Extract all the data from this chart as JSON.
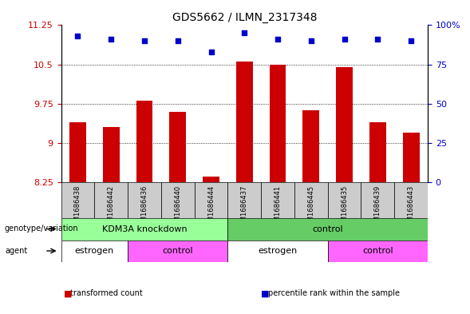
{
  "title": "GDS5662 / ILMN_2317348",
  "samples": [
    "GSM1686438",
    "GSM1686442",
    "GSM1686436",
    "GSM1686440",
    "GSM1686444",
    "GSM1686437",
    "GSM1686441",
    "GSM1686445",
    "GSM1686435",
    "GSM1686439",
    "GSM1686443"
  ],
  "bar_values": [
    9.4,
    9.3,
    9.8,
    9.6,
    8.35,
    10.55,
    10.5,
    9.62,
    10.45,
    9.4,
    9.2
  ],
  "dot_values": [
    93,
    91,
    90,
    90,
    83,
    95,
    91,
    90,
    91,
    91,
    90
  ],
  "ylim_left": [
    8.25,
    11.25
  ],
  "ylim_right": [
    0,
    100
  ],
  "yticks_left": [
    8.25,
    9.0,
    9.75,
    10.5,
    11.25
  ],
  "yticks_right": [
    0,
    25,
    50,
    75,
    100
  ],
  "ytick_labels_left": [
    "8.25",
    "9",
    "9.75",
    "10.5",
    "11.25"
  ],
  "ytick_labels_right": [
    "0",
    "25",
    "50",
    "75",
    "100%"
  ],
  "grid_lines": [
    9.0,
    9.75,
    10.5
  ],
  "bar_color": "#cc0000",
  "dot_color": "#0000cc",
  "bar_width": 0.5,
  "genotype_groups": [
    {
      "label": "KDM3A knockdown",
      "start": 0,
      "end": 5,
      "color": "#99ff99"
    },
    {
      "label": "control",
      "start": 5,
      "end": 11,
      "color": "#66cc66"
    }
  ],
  "agent_groups": [
    {
      "label": "estrogen",
      "start": 0,
      "end": 2,
      "color": "#ffffff"
    },
    {
      "label": "control",
      "start": 2,
      "end": 5,
      "color": "#ff66ff"
    },
    {
      "label": "estrogen",
      "start": 5,
      "end": 8,
      "color": "#ffffff"
    },
    {
      "label": "control",
      "start": 8,
      "end": 11,
      "color": "#ff66ff"
    }
  ],
  "legend_items": [
    {
      "label": "transformed count",
      "color": "#cc0000",
      "marker": "s"
    },
    {
      "label": "percentile rank within the sample",
      "color": "#0000cc",
      "marker": "s"
    }
  ],
  "genotype_label": "genotype/variation",
  "agent_label": "agent",
  "sample_bg_color": "#cccccc",
  "background_color": "#ffffff"
}
